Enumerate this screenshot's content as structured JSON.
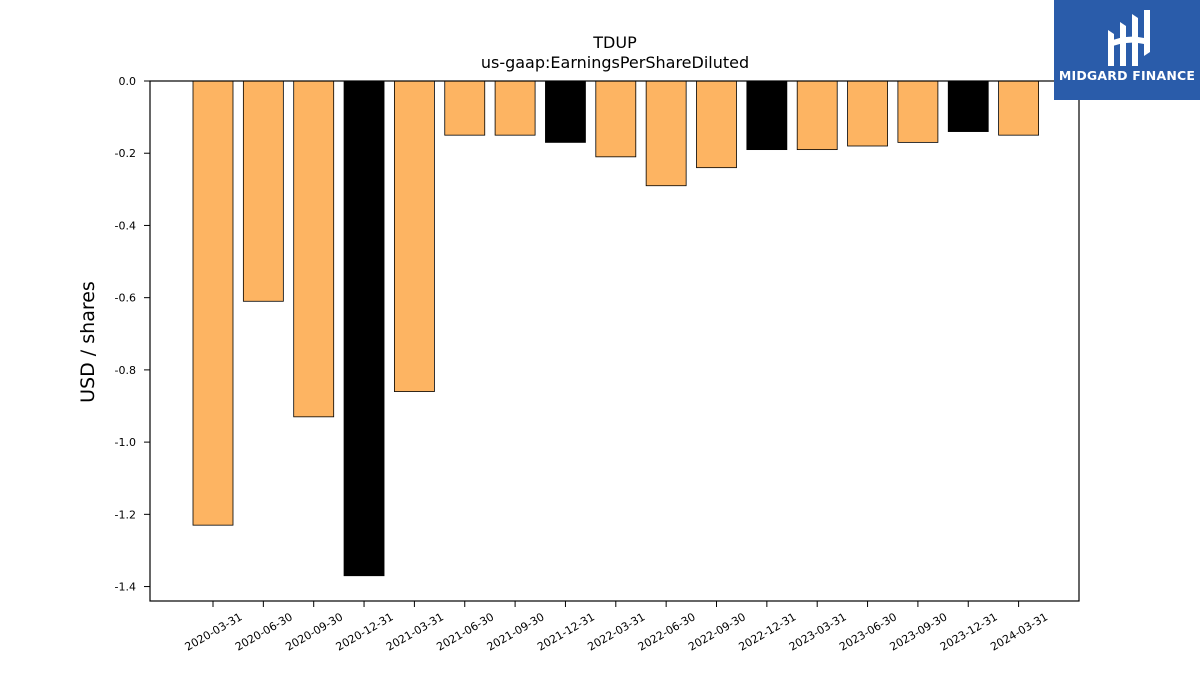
{
  "chart_data": {
    "type": "bar",
    "title": "TDUP",
    "subtitle": "us-gaap:EarningsPerShareDiluted",
    "xlabel": "",
    "ylabel": "USD / shares",
    "ylim": [
      -1.44,
      0.0
    ],
    "yticks": [
      "0.0",
      "-0.2",
      "-0.4",
      "-0.6",
      "-0.8",
      "-1.0",
      "-1.2",
      "-1.4"
    ],
    "grid": false,
    "categories": [
      "2020-03-31",
      "2020-06-30",
      "2020-09-30",
      "2020-12-31",
      "2021-03-31",
      "2021-06-30",
      "2021-09-30",
      "2021-12-31",
      "2022-03-31",
      "2022-06-30",
      "2022-09-30",
      "2022-12-31",
      "2023-03-31",
      "2023-06-30",
      "2023-09-30",
      "2023-12-31",
      "2024-03-31"
    ],
    "values": [
      -1.23,
      -0.61,
      -0.93,
      -1.37,
      -0.86,
      -0.15,
      -0.15,
      -0.17,
      -0.21,
      -0.29,
      -0.24,
      -0.19,
      -0.19,
      -0.18,
      -0.17,
      -0.14,
      -0.15
    ],
    "bar_colors": [
      "#fdb462",
      "#fdb462",
      "#fdb462",
      "#000000",
      "#fdb462",
      "#fdb462",
      "#fdb462",
      "#000000",
      "#fdb462",
      "#fdb462",
      "#fdb462",
      "#000000",
      "#fdb462",
      "#fdb462",
      "#fdb462",
      "#000000",
      "#fdb462"
    ]
  },
  "logo": {
    "text": "MIDGARD FINANCE",
    "color": "#2a5caa",
    "icon": "midgard-logo-icon"
  }
}
